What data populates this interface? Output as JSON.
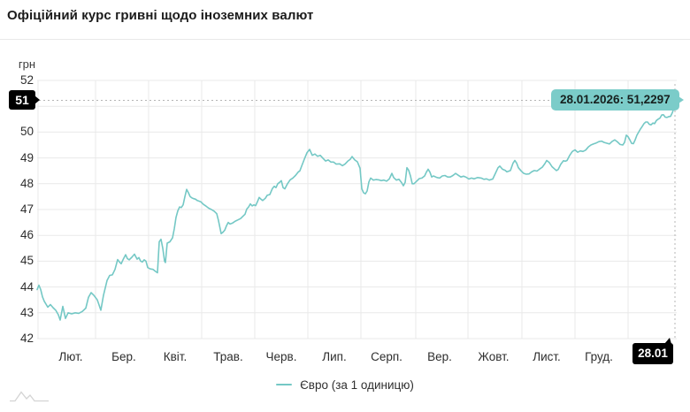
{
  "header": {
    "title": "Офіційний курс гривні щодо іноземних валют"
  },
  "colors": {
    "line": "#74c8c5",
    "tooltip_bg": "#7bccc9",
    "tooltip_text": "#17211f",
    "badge_bg": "#000000",
    "badge_text": "#ffffff",
    "grid": "#e9e9e9",
    "axis_text": "#2e2e2e",
    "crosshair": "#b5b5b5",
    "watermark": "#d4d4d4"
  },
  "chart_data": {
    "type": "line",
    "title": "Офіційний курс гривні щодо іноземних валют",
    "y_unit_label": "грн",
    "ylim": [
      42,
      52
    ],
    "y_ticks": [
      52,
      51,
      50,
      49,
      48,
      47,
      46,
      45,
      44,
      43,
      42
    ],
    "x_tick_labels": [
      "Лют.",
      "Бер.",
      "Квіт.",
      "Трав.",
      "Черв.",
      "Лип.",
      "Серп.",
      "Вер.",
      "Жовт.",
      "Лист.",
      "Груд."
    ],
    "x_end_label": "28.01",
    "grid": true,
    "legend": {
      "position": "bottom",
      "entries": [
        {
          "label": "Євро (за 1 одиницю)",
          "color": "#74c8c5"
        }
      ]
    },
    "crosshair": {
      "tooltip": "28.01.2026: 51,2297",
      "date": "28.01.2026",
      "value": 51.2297,
      "y_axis_badge": "51",
      "x_axis_badge": "28.01"
    },
    "series": [
      {
        "name": "Євро (за 1 одиницю)",
        "x_unit": "pixel position along x-axis (left edge = start of range, 763 = 28.01.2026)",
        "points": [
          [
            42,
            43.9
          ],
          [
            44,
            44.07
          ],
          [
            46,
            43.9
          ],
          [
            48,
            43.62
          ],
          [
            50,
            43.45
          ],
          [
            54,
            43.22
          ],
          [
            57,
            43.32
          ],
          [
            60,
            43.2
          ],
          [
            63,
            43.1
          ],
          [
            66,
            42.92
          ],
          [
            68,
            42.72
          ],
          [
            71,
            43.25
          ],
          [
            74,
            42.78
          ],
          [
            77,
            43.0
          ],
          [
            81,
            42.96
          ],
          [
            85,
            43.0
          ],
          [
            89,
            42.98
          ],
          [
            93,
            43.05
          ],
          [
            97,
            43.18
          ],
          [
            100,
            43.6
          ],
          [
            103,
            43.78
          ],
          [
            106,
            43.68
          ],
          [
            110,
            43.5
          ],
          [
            112,
            43.3
          ],
          [
            114,
            43.1
          ],
          [
            117,
            43.68
          ],
          [
            121,
            44.25
          ],
          [
            124,
            44.45
          ],
          [
            127,
            44.47
          ],
          [
            130,
            44.68
          ],
          [
            133,
            45.06
          ],
          [
            135,
            44.97
          ],
          [
            137,
            44.9
          ],
          [
            139,
            45.05
          ],
          [
            142,
            45.25
          ],
          [
            144,
            45.1
          ],
          [
            146,
            45.05
          ],
          [
            149,
            45.15
          ],
          [
            152,
            45.27
          ],
          [
            155,
            45.08
          ],
          [
            157,
            45.14
          ],
          [
            159,
            45.0
          ],
          [
            161,
            44.97
          ],
          [
            163,
            45.05
          ],
          [
            165,
            45.0
          ],
          [
            167,
            44.75
          ],
          [
            170,
            44.7
          ],
          [
            173,
            44.68
          ],
          [
            176,
            44.6
          ],
          [
            178,
            44.55
          ],
          [
            180,
            45.75
          ],
          [
            182,
            45.85
          ],
          [
            184,
            45.5
          ],
          [
            186,
            45.0
          ],
          [
            187,
            44.95
          ],
          [
            189,
            45.7
          ],
          [
            192,
            45.75
          ],
          [
            195,
            45.9
          ],
          [
            197,
            46.25
          ],
          [
            199,
            46.7
          ],
          [
            201,
            46.95
          ],
          [
            203,
            47.1
          ],
          [
            205,
            47.08
          ],
          [
            207,
            47.18
          ],
          [
            209,
            47.5
          ],
          [
            211,
            47.78
          ],
          [
            213,
            47.65
          ],
          [
            215,
            47.5
          ],
          [
            217,
            47.45
          ],
          [
            219,
            47.42
          ],
          [
            221,
            47.4
          ],
          [
            223,
            47.35
          ],
          [
            227,
            47.3
          ],
          [
            230,
            47.2
          ],
          [
            233,
            47.13
          ],
          [
            236,
            47.05
          ],
          [
            239,
            47.0
          ],
          [
            242,
            46.94
          ],
          [
            245,
            46.84
          ],
          [
            247,
            46.57
          ],
          [
            250,
            46.07
          ],
          [
            252,
            46.12
          ],
          [
            254,
            46.2
          ],
          [
            256,
            46.37
          ],
          [
            258,
            46.5
          ],
          [
            260,
            46.44
          ],
          [
            263,
            46.48
          ],
          [
            266,
            46.55
          ],
          [
            269,
            46.6
          ],
          [
            272,
            46.65
          ],
          [
            274,
            46.72
          ],
          [
            277,
            46.82
          ],
          [
            279,
            47.02
          ],
          [
            281,
            47.1
          ],
          [
            283,
            47.22
          ],
          [
            285,
            47.14
          ],
          [
            287,
            47.18
          ],
          [
            289,
            47.15
          ],
          [
            291,
            47.3
          ],
          [
            293,
            47.47
          ],
          [
            295,
            47.4
          ],
          [
            297,
            47.35
          ],
          [
            300,
            47.44
          ],
          [
            302,
            47.55
          ],
          [
            305,
            47.58
          ],
          [
            308,
            47.82
          ],
          [
            310,
            47.9
          ],
          [
            312,
            47.85
          ],
          [
            314,
            48.0
          ],
          [
            316,
            48.05
          ],
          [
            318,
            48.12
          ],
          [
            320,
            47.85
          ],
          [
            322,
            47.8
          ],
          [
            325,
            48.0
          ],
          [
            328,
            48.15
          ],
          [
            331,
            48.22
          ],
          [
            334,
            48.32
          ],
          [
            337,
            48.45
          ],
          [
            339,
            48.5
          ],
          [
            341,
            48.68
          ],
          [
            344,
            48.95
          ],
          [
            347,
            49.2
          ],
          [
            350,
            49.33
          ],
          [
            353,
            49.1
          ],
          [
            356,
            49.15
          ],
          [
            359,
            49.06
          ],
          [
            362,
            49.1
          ],
          [
            365,
            48.99
          ],
          [
            368,
            48.88
          ],
          [
            371,
            48.92
          ],
          [
            374,
            48.84
          ],
          [
            377,
            48.84
          ],
          [
            380,
            48.76
          ],
          [
            384,
            48.77
          ],
          [
            387,
            48.7
          ],
          [
            390,
            48.76
          ],
          [
            393,
            48.87
          ],
          [
            396,
            48.95
          ],
          [
            398,
            49.05
          ],
          [
            401,
            48.92
          ],
          [
            404,
            48.85
          ],
          [
            407,
            48.6
          ],
          [
            409,
            47.8
          ],
          [
            411,
            47.65
          ],
          [
            413,
            47.61
          ],
          [
            415,
            47.72
          ],
          [
            417,
            48.07
          ],
          [
            419,
            48.22
          ],
          [
            422,
            48.14
          ],
          [
            425,
            48.16
          ],
          [
            428,
            48.15
          ],
          [
            431,
            48.12
          ],
          [
            434,
            48.14
          ],
          [
            437,
            48.1
          ],
          [
            440,
            48.18
          ],
          [
            443,
            48.4
          ],
          [
            445,
            48.24
          ],
          [
            448,
            48.14
          ],
          [
            451,
            48.17
          ],
          [
            454,
            48.04
          ],
          [
            456,
            47.92
          ],
          [
            458,
            48.05
          ],
          [
            460,
            48.62
          ],
          [
            462,
            48.52
          ],
          [
            464,
            48.3
          ],
          [
            466,
            48.0
          ],
          [
            468,
            48.0
          ],
          [
            471,
            48.1
          ],
          [
            474,
            48.2
          ],
          [
            477,
            48.22
          ],
          [
            480,
            48.3
          ],
          [
            482,
            48.45
          ],
          [
            484,
            48.56
          ],
          [
            486,
            48.45
          ],
          [
            488,
            48.26
          ],
          [
            490,
            48.3
          ],
          [
            494,
            48.24
          ],
          [
            497,
            48.22
          ],
          [
            500,
            48.3
          ],
          [
            503,
            48.32
          ],
          [
            506,
            48.26
          ],
          [
            509,
            48.26
          ],
          [
            512,
            48.32
          ],
          [
            515,
            48.4
          ],
          [
            518,
            48.33
          ],
          [
            521,
            48.26
          ],
          [
            524,
            48.29
          ],
          [
            527,
            48.25
          ],
          [
            530,
            48.18
          ],
          [
            533,
            48.22
          ],
          [
            536,
            48.19
          ],
          [
            540,
            48.24
          ],
          [
            544,
            48.22
          ],
          [
            547,
            48.17
          ],
          [
            550,
            48.19
          ],
          [
            553,
            48.14
          ],
          [
            557,
            48.18
          ],
          [
            560,
            48.4
          ],
          [
            563,
            48.62
          ],
          [
            565,
            48.68
          ],
          [
            568,
            48.56
          ],
          [
            571,
            48.52
          ],
          [
            573,
            48.46
          ],
          [
            577,
            48.51
          ],
          [
            580,
            48.8
          ],
          [
            582,
            48.9
          ],
          [
            584,
            48.8
          ],
          [
            586,
            48.62
          ],
          [
            589,
            48.5
          ],
          [
            592,
            48.4
          ],
          [
            595,
            48.37
          ],
          [
            598,
            48.38
          ],
          [
            601,
            48.46
          ],
          [
            604,
            48.51
          ],
          [
            607,
            48.49
          ],
          [
            610,
            48.57
          ],
          [
            613,
            48.64
          ],
          [
            616,
            48.78
          ],
          [
            618,
            48.9
          ],
          [
            621,
            48.82
          ],
          [
            624,
            48.66
          ],
          [
            627,
            48.57
          ],
          [
            629,
            48.51
          ],
          [
            631,
            48.55
          ],
          [
            634,
            48.76
          ],
          [
            637,
            48.89
          ],
          [
            639,
            48.87
          ],
          [
            641,
            48.9
          ],
          [
            644,
            49.1
          ],
          [
            647,
            49.25
          ],
          [
            650,
            49.31
          ],
          [
            653,
            49.22
          ],
          [
            656,
            49.27
          ],
          [
            659,
            49.25
          ],
          [
            662,
            49.3
          ],
          [
            665,
            49.42
          ],
          [
            668,
            49.5
          ],
          [
            671,
            49.54
          ],
          [
            674,
            49.58
          ],
          [
            677,
            49.63
          ],
          [
            680,
            49.65
          ],
          [
            683,
            49.6
          ],
          [
            686,
            49.57
          ],
          [
            689,
            49.54
          ],
          [
            692,
            49.64
          ],
          [
            695,
            49.7
          ],
          [
            698,
            49.62
          ],
          [
            701,
            49.52
          ],
          [
            704,
            49.5
          ],
          [
            706,
            49.6
          ],
          [
            708,
            49.88
          ],
          [
            710,
            49.82
          ],
          [
            712,
            49.7
          ],
          [
            714,
            49.56
          ],
          [
            716,
            49.55
          ],
          [
            718,
            49.7
          ],
          [
            720,
            49.88
          ],
          [
            722,
            50.0
          ],
          [
            724,
            50.12
          ],
          [
            726,
            50.22
          ],
          [
            728,
            50.33
          ],
          [
            730,
            50.39
          ],
          [
            732,
            50.39
          ],
          [
            734,
            50.3
          ],
          [
            736,
            50.28
          ],
          [
            738,
            50.35
          ],
          [
            740,
            50.33
          ],
          [
            742,
            50.45
          ],
          [
            744,
            50.5
          ],
          [
            746,
            50.54
          ],
          [
            748,
            50.66
          ],
          [
            750,
            50.67
          ],
          [
            752,
            50.58
          ],
          [
            754,
            50.57
          ],
          [
            756,
            50.6
          ],
          [
            758,
            50.61
          ],
          [
            760,
            50.75
          ],
          [
            762,
            50.95
          ],
          [
            763,
            51.23
          ]
        ]
      }
    ]
  },
  "footer": {
    "legend_label": "Євро (за 1 одиницю)"
  }
}
